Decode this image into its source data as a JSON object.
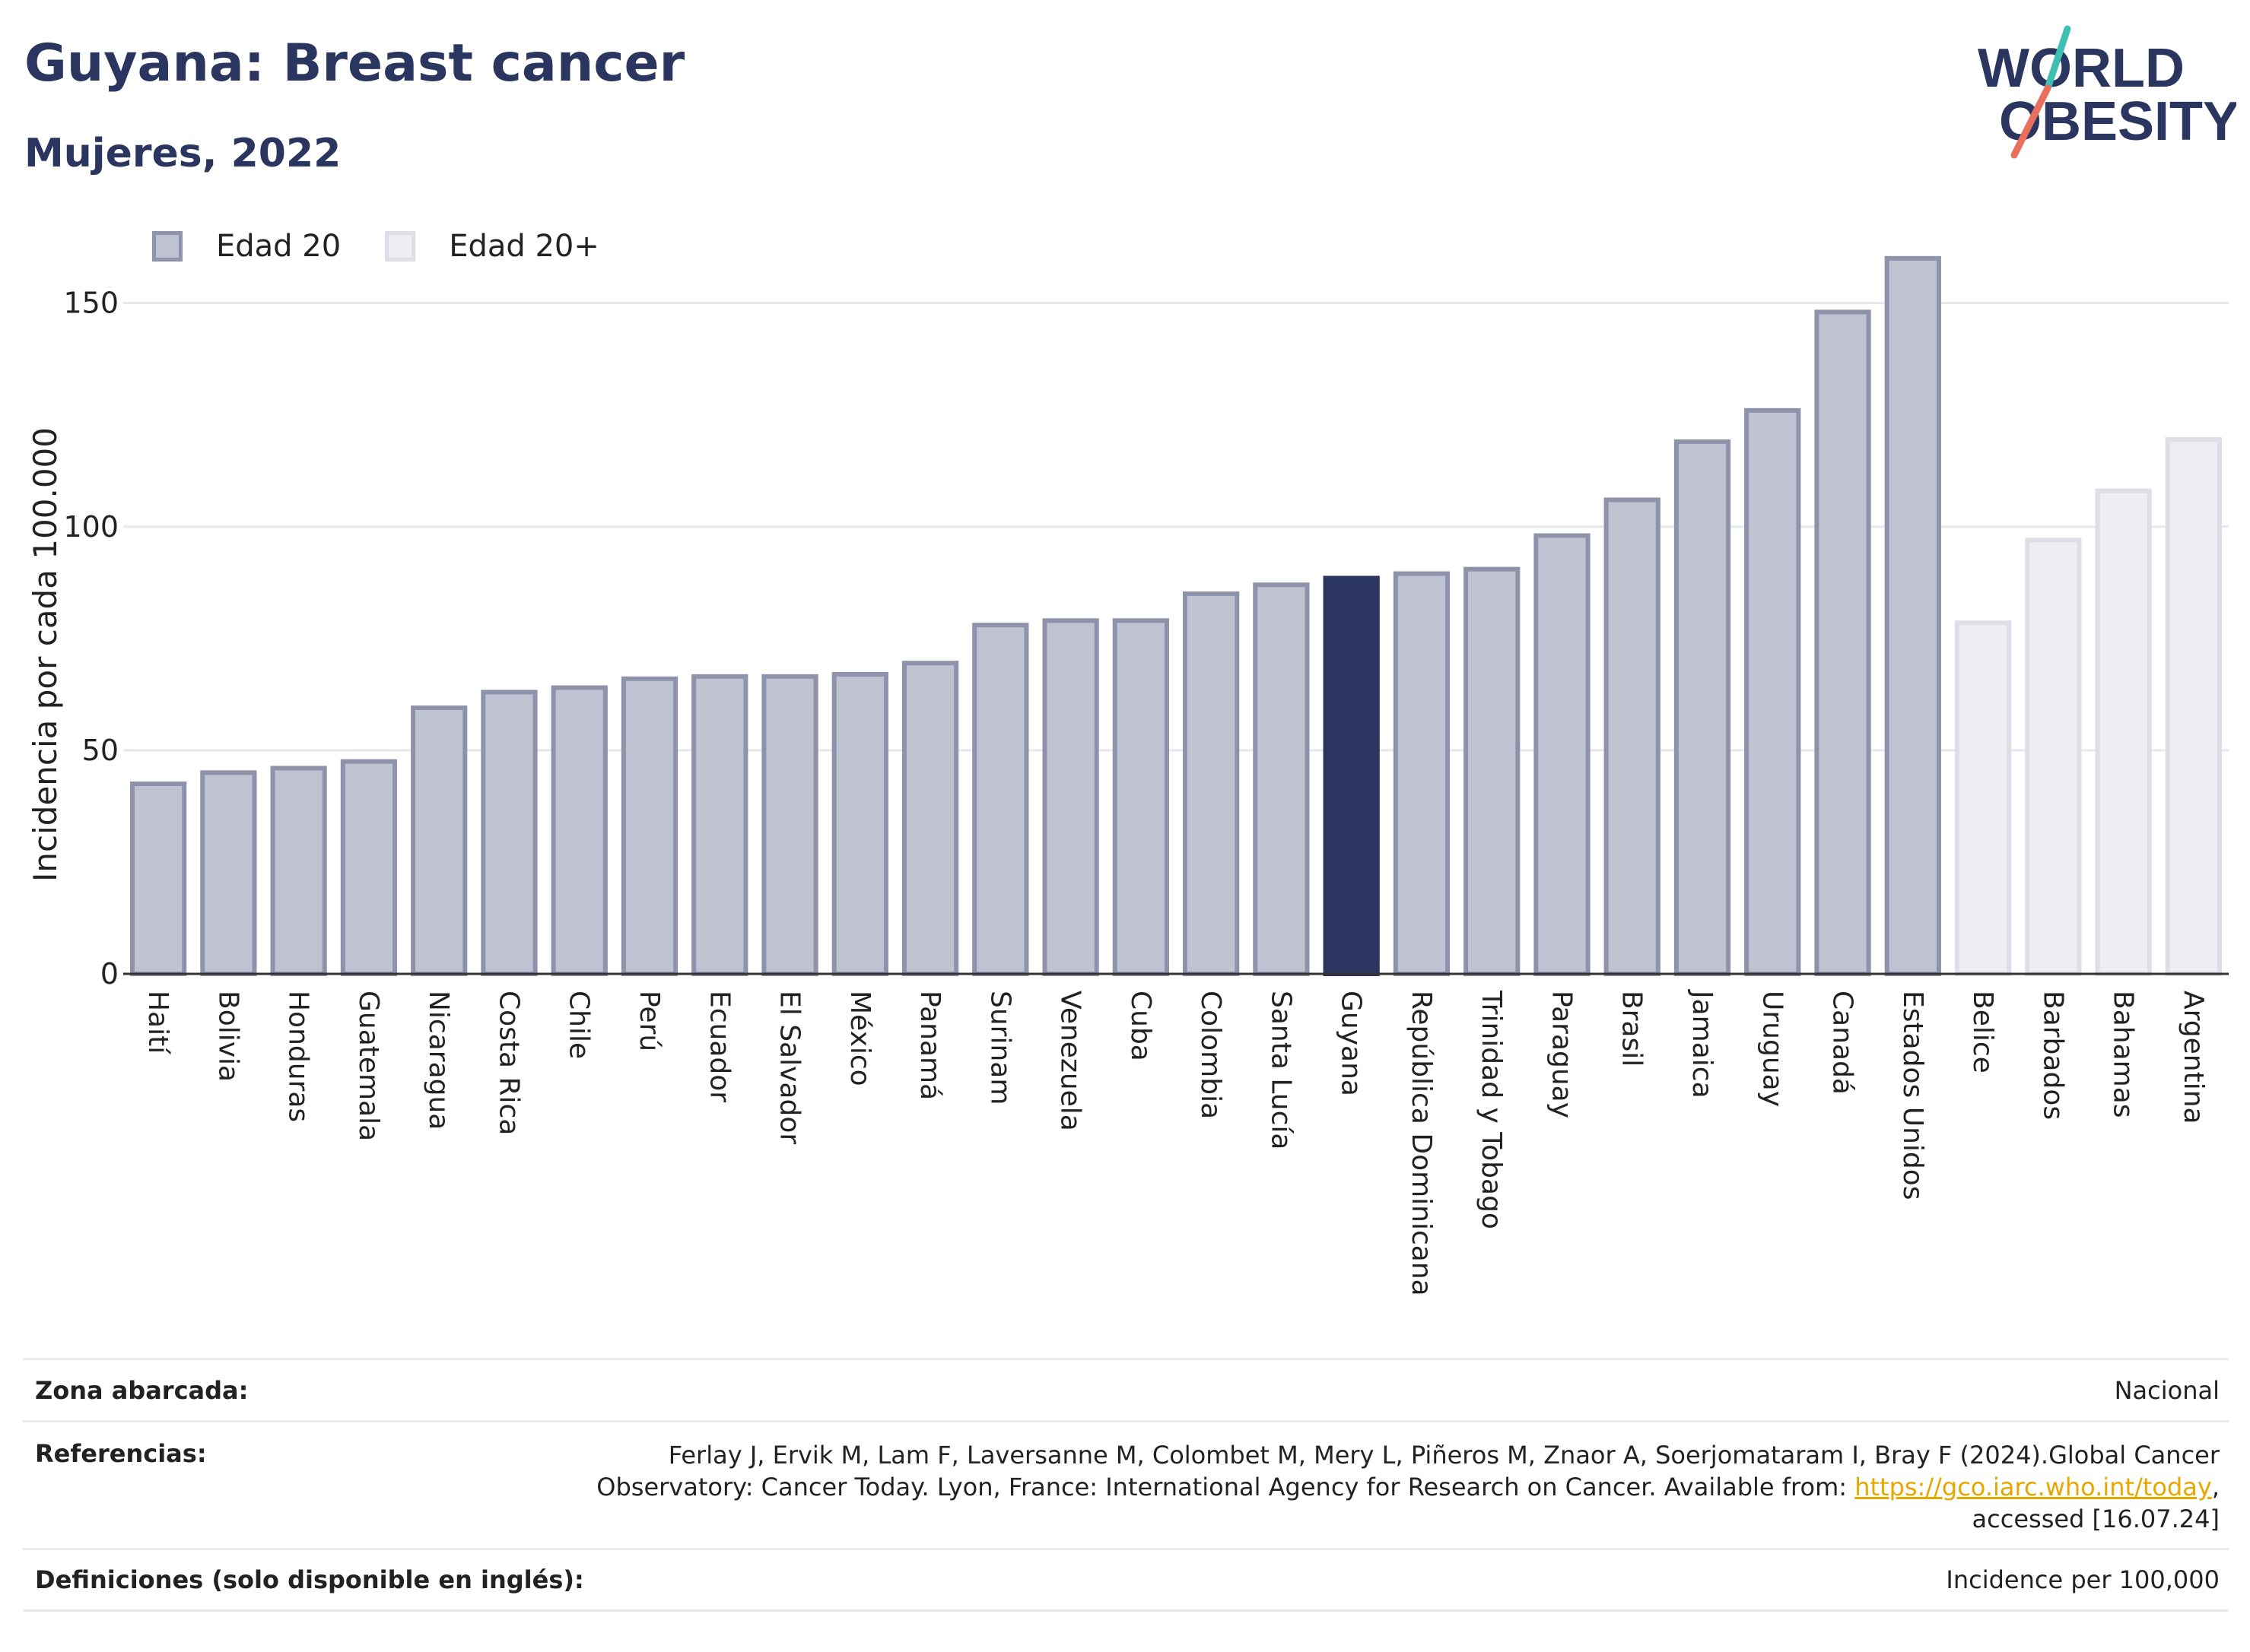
{
  "header": {
    "title": "Guyana: Breast cancer",
    "subtitle": "Mujeres, 2022"
  },
  "logo": {
    "line1": "WORLD",
    "line2": "OBESITY"
  },
  "legend": {
    "items": [
      {
        "label": "Edad 20",
        "color": "#bfc2d0"
      },
      {
        "label": "Edad 20+",
        "color": "#eeeef2"
      }
    ]
  },
  "colors": {
    "bar_age20": "#bfc2d0",
    "bar_age20_border": "#8e93ab",
    "bar_age20plus": "#eeeef2",
    "bar_age20plus_border": "#dedee6",
    "highlight": "#2a3560"
  },
  "chart_data": {
    "type": "bar",
    "ylabel": "Incidencia por cada 100.000",
    "xlabel": "",
    "ylim": [
      0,
      170
    ],
    "yticks": [
      0,
      50,
      100,
      150
    ],
    "grid": true,
    "legend_position": "top-left",
    "highlight": "Guyana",
    "categories": [
      "Haití",
      "Bolivia",
      "Honduras",
      "Guatemala",
      "Nicaragua",
      "Costa Rica",
      "Chile",
      "Perú",
      "Ecuador",
      "El Salvador",
      "México",
      "Panamá",
      "Surinam",
      "Venezuela",
      "Cuba",
      "Colombia",
      "Santa Lucía",
      "Guyana",
      "República Dominicana",
      "Trinidad y Tobago",
      "Paraguay",
      "Brasil",
      "Jamaica",
      "Uruguay",
      "Canadá",
      "Estados Unidos",
      "Belice",
      "Barbados",
      "Bahamas",
      "Argentina"
    ],
    "values": [
      42.5,
      45,
      46,
      47.5,
      59.5,
      63,
      64,
      66,
      66.5,
      66.5,
      67,
      69.5,
      78,
      79,
      79,
      85,
      87,
      88.5,
      89.5,
      90.5,
      98,
      106,
      119,
      126,
      148,
      160,
      78.5,
      97,
      108,
      119.5
    ],
    "series_group": [
      "Edad 20",
      "Edad 20",
      "Edad 20",
      "Edad 20",
      "Edad 20",
      "Edad 20",
      "Edad 20",
      "Edad 20",
      "Edad 20",
      "Edad 20",
      "Edad 20",
      "Edad 20",
      "Edad 20",
      "Edad 20",
      "Edad 20",
      "Edad 20",
      "Edad 20",
      "Edad 20",
      "Edad 20",
      "Edad 20",
      "Edad 20",
      "Edad 20",
      "Edad 20",
      "Edad 20",
      "Edad 20",
      "Edad 20",
      "Edad 20+",
      "Edad 20+",
      "Edad 20+",
      "Edad 20+"
    ]
  },
  "metadata": {
    "zona_label": "Zona abarcada:",
    "zona_value": "Nacional",
    "ref_label": "Referencias:",
    "ref_line1": "Ferlay J, Ervik M, Lam F, Laversanne M, Colombet M, Mery L, Piñeros M, Znaor A, Soerjomataram I, Bray F (2024).Global Cancer",
    "ref_line2_prefix": "Observatory: Cancer Today. Lyon, France: International Agency for Research on Cancer. Available from: ",
    "ref_link": "https://gco.iarc.who.int/today",
    "ref_line2_suffix": ",",
    "ref_line3": "accessed [16.07.24]",
    "def_label": "Definiciones (solo disponible en inglés):",
    "def_value": "Incidence per 100,000"
  }
}
